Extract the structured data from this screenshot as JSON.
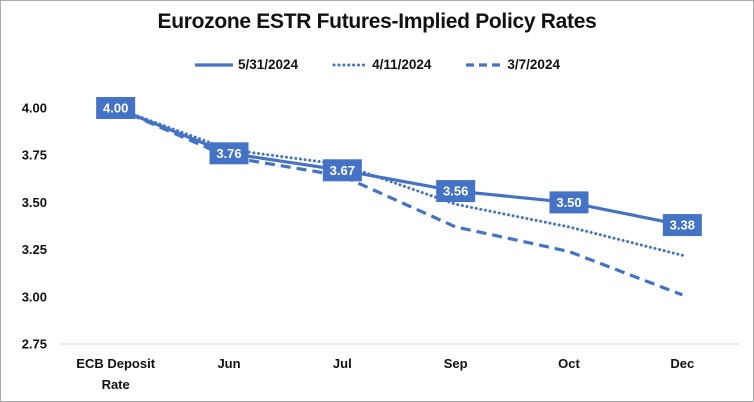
{
  "chart_data": {
    "type": "line",
    "title": "Eurozone ESTR Futures-Implied Policy Rates",
    "categories": [
      "ECB Deposit\nRate",
      "Jun",
      "Jul",
      "Sep",
      "Oct",
      "Dec"
    ],
    "series": [
      {
        "name": "5/31/2024",
        "style": "solid",
        "values": [
          4.0,
          3.76,
          3.67,
          3.56,
          3.5,
          3.38
        ],
        "point_labels": [
          "4.00",
          "3.76",
          "3.67",
          "3.56",
          "3.50",
          "3.38"
        ]
      },
      {
        "name": "4/11/2024",
        "style": "dotted",
        "values": [
          4.0,
          3.78,
          3.7,
          3.49,
          3.37,
          3.22
        ]
      },
      {
        "name": "3/7/2024",
        "style": "dashed",
        "values": [
          4.0,
          3.74,
          3.64,
          3.37,
          3.24,
          3.01
        ]
      }
    ],
    "y_ticks": [
      "4.00",
      "3.75",
      "3.50",
      "3.25",
      "3.00",
      "2.75"
    ],
    "ylim": [
      2.75,
      4.0
    ],
    "xlabel": "",
    "ylabel": "",
    "grid": "bottom-axis-line-only",
    "legend_position": "top",
    "colors": {
      "line": "#4472C4",
      "label_box": "#4472C4",
      "label_text": "#ffffff",
      "axis_text": "#111111",
      "axis_line": "#d9d9d9"
    }
  }
}
